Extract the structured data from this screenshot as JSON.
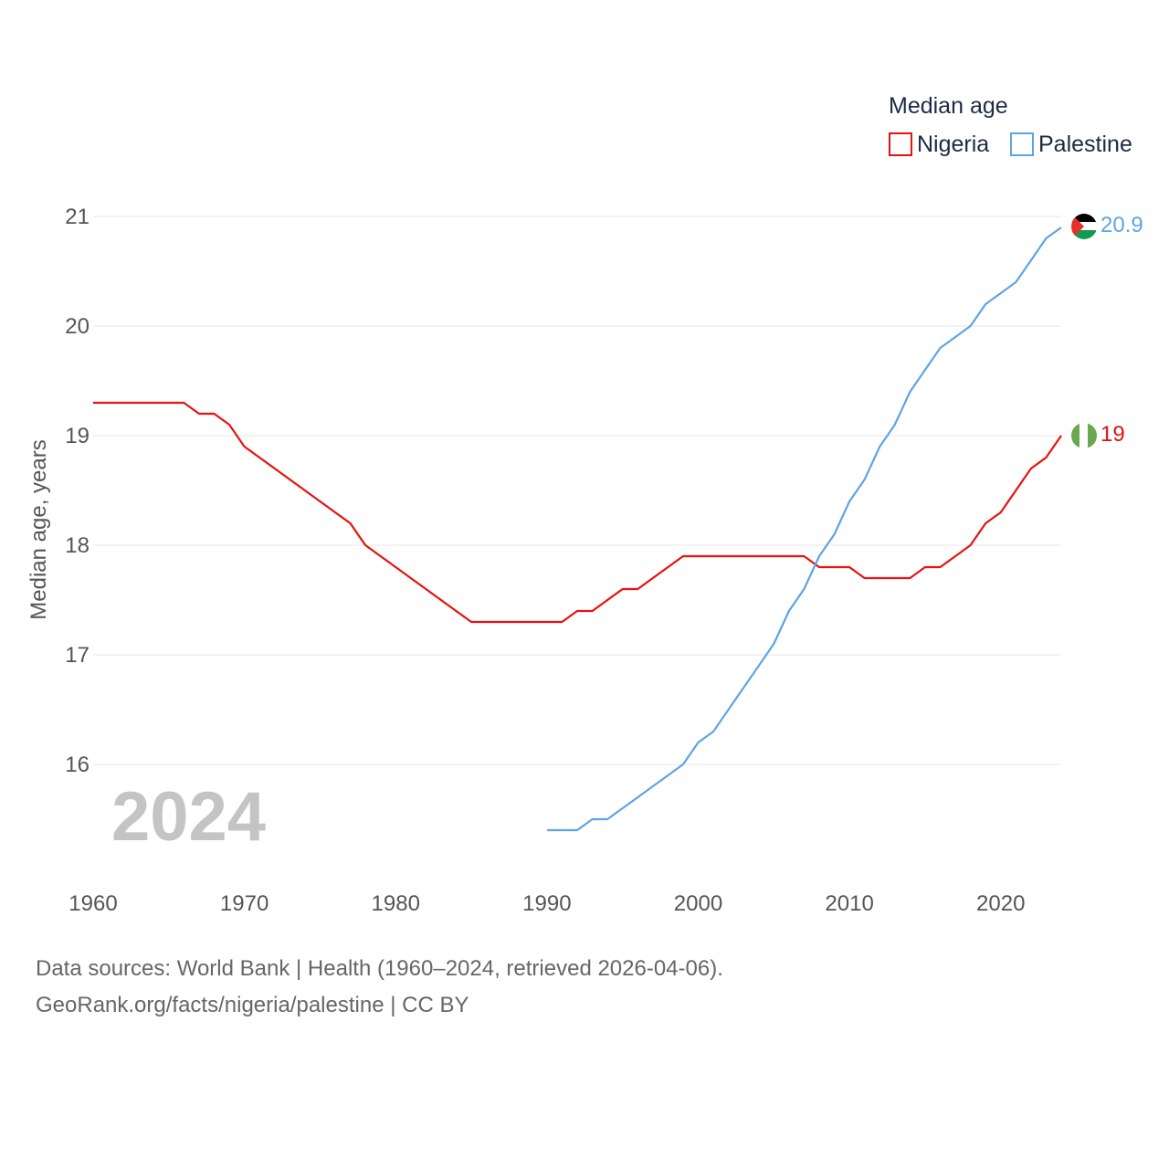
{
  "chart_data": {
    "type": "line",
    "legend_title": "Median age",
    "ylabel": "Median age, years",
    "xlabel": "",
    "xlim": [
      1960,
      2024
    ],
    "ylim": [
      15,
      21
    ],
    "x_ticks": [
      1960,
      1970,
      1980,
      1990,
      2000,
      2010,
      2020
    ],
    "y_ticks": [
      16,
      17,
      18,
      19,
      20,
      21
    ],
    "grid": true,
    "legend_position": "top-right",
    "current_year_label": "2024",
    "series": [
      {
        "name": "Nigeria",
        "color": "#e8110f",
        "end_label": "19",
        "flag_icon": "nigeria-flag-icon",
        "x": [
          1960,
          1961,
          1962,
          1963,
          1964,
          1965,
          1966,
          1967,
          1968,
          1969,
          1970,
          1971,
          1972,
          1973,
          1974,
          1975,
          1976,
          1977,
          1978,
          1979,
          1980,
          1981,
          1982,
          1983,
          1984,
          1985,
          1986,
          1987,
          1988,
          1989,
          1990,
          1991,
          1992,
          1993,
          1994,
          1995,
          1996,
          1997,
          1998,
          1999,
          2000,
          2001,
          2002,
          2003,
          2004,
          2005,
          2006,
          2007,
          2008,
          2009,
          2010,
          2011,
          2012,
          2013,
          2014,
          2015,
          2016,
          2017,
          2018,
          2019,
          2020,
          2021,
          2022,
          2023,
          2024
        ],
        "values": [
          19.3,
          19.3,
          19.3,
          19.3,
          19.3,
          19.3,
          19.3,
          19.2,
          19.2,
          19.1,
          18.9,
          18.8,
          18.7,
          18.6,
          18.5,
          18.4,
          18.3,
          18.2,
          18.0,
          17.9,
          17.8,
          17.7,
          17.6,
          17.5,
          17.4,
          17.3,
          17.3,
          17.3,
          17.3,
          17.3,
          17.3,
          17.3,
          17.4,
          17.4,
          17.5,
          17.6,
          17.6,
          17.7,
          17.8,
          17.9,
          17.9,
          17.9,
          17.9,
          17.9,
          17.9,
          17.9,
          17.9,
          17.9,
          17.8,
          17.8,
          17.8,
          17.7,
          17.7,
          17.7,
          17.7,
          17.8,
          17.8,
          17.9,
          18.0,
          18.2,
          18.3,
          18.5,
          18.7,
          18.8,
          19.0
        ]
      },
      {
        "name": "Palestine",
        "color": "#5ea4e4",
        "end_label": "20.9",
        "flag_icon": "palestine-flag-icon",
        "x": [
          1990,
          1991,
          1992,
          1993,
          1994,
          1995,
          1996,
          1997,
          1998,
          1999,
          2000,
          2001,
          2002,
          2003,
          2004,
          2005,
          2006,
          2007,
          2008,
          2009,
          2010,
          2011,
          2012,
          2013,
          2014,
          2015,
          2016,
          2017,
          2018,
          2019,
          2020,
          2021,
          2022,
          2023,
          2024
        ],
        "values": [
          15.4,
          15.4,
          15.4,
          15.5,
          15.5,
          15.6,
          15.7,
          15.8,
          15.9,
          16.0,
          16.2,
          16.3,
          16.5,
          16.7,
          16.9,
          17.1,
          17.4,
          17.6,
          17.9,
          18.1,
          18.4,
          18.6,
          18.9,
          19.1,
          19.4,
          19.6,
          19.8,
          19.9,
          20.0,
          20.2,
          20.3,
          20.4,
          20.6,
          20.8,
          20.9
        ]
      }
    ]
  },
  "footer": {
    "sources": "Data sources: World Bank | Health (1960–2024, retrieved 2026-04-06).",
    "credit": "GeoRank.org/facts/nigeria/palestine | CC BY"
  }
}
